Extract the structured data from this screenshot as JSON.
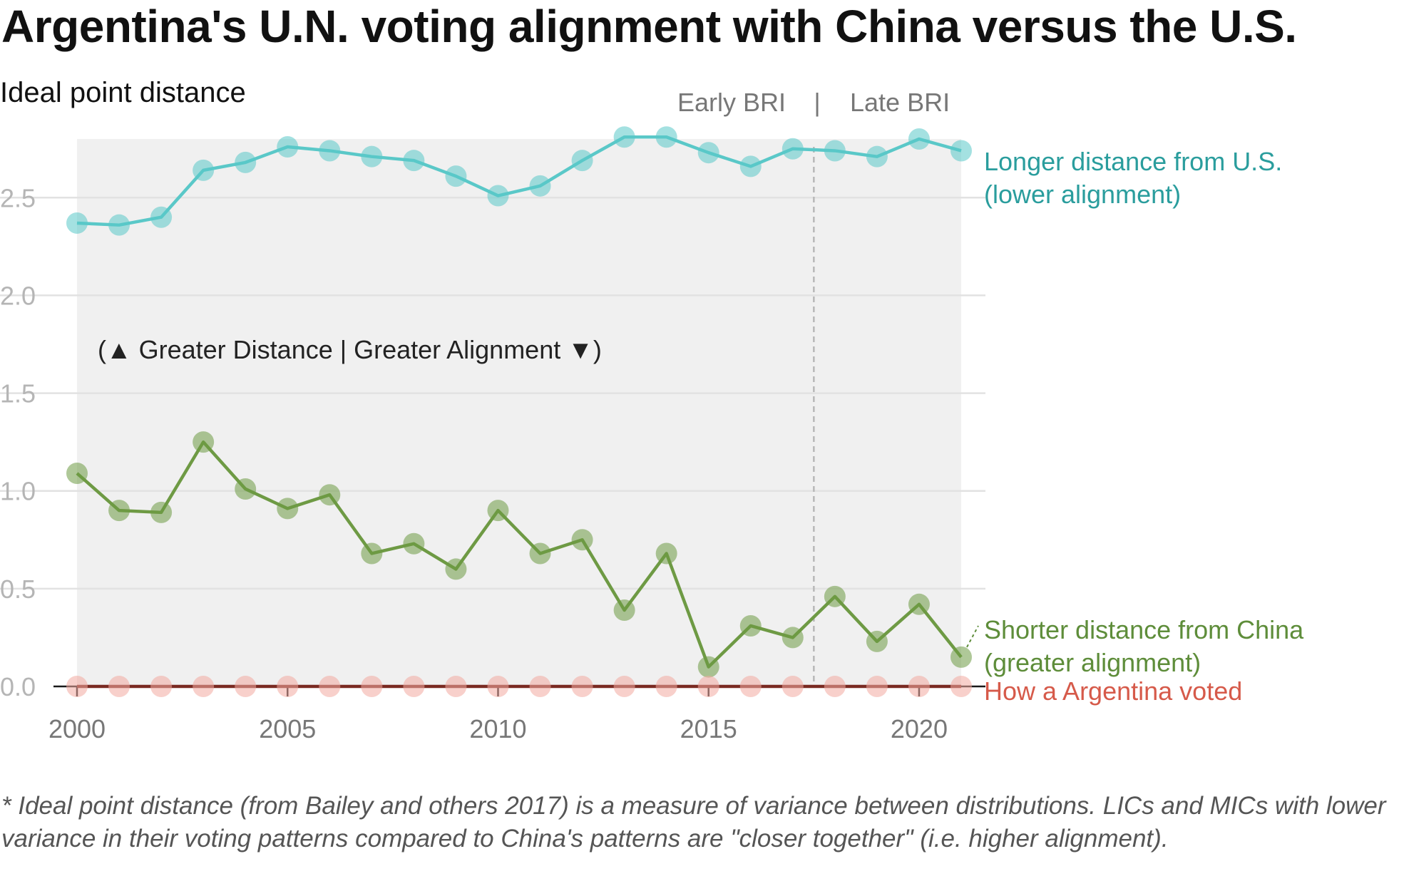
{
  "title": "Argentina's U.N. voting alignment with China versus the U.S.",
  "footnote": "* Ideal point distance (from Bailey and others 2017) is a measure of variance between distributions. LICs and MICs with lower variance in their voting patterns compared to China's patterns are \"closer together\" (i.e. higher alignment).",
  "chart_data": {
    "type": "line",
    "ylabel": "Ideal point distance",
    "xlim": [
      2000,
      2021
    ],
    "ylim": [
      0,
      2.8
    ],
    "x_ticks": [
      2000,
      2005,
      2010,
      2015,
      2020
    ],
    "y_ticks": [
      0.0,
      0.5,
      1.0,
      1.5,
      2.0,
      2.5
    ],
    "y_tick_labels": [
      "0.0",
      "0.5",
      "1.0",
      "1.5",
      "2.0",
      "2.5"
    ],
    "grid": true,
    "x": [
      2000,
      2001,
      2002,
      2003,
      2004,
      2005,
      2006,
      2007,
      2008,
      2009,
      2010,
      2011,
      2012,
      2013,
      2014,
      2015,
      2016,
      2017,
      2018,
      2019,
      2020,
      2021
    ],
    "series": [
      {
        "key": "us",
        "name": "Longer distance from U.S. (lower alignment)",
        "label_lines": [
          "Longer distance from U.S.",
          "(lower alignment)"
        ],
        "color": "#5ac8c8",
        "label_color": "#2a9d9d",
        "values": [
          2.37,
          2.36,
          2.4,
          2.64,
          2.68,
          2.76,
          2.74,
          2.71,
          2.69,
          2.61,
          2.51,
          2.56,
          2.69,
          2.81,
          2.81,
          2.73,
          2.66,
          2.75,
          2.74,
          2.71,
          2.8,
          2.74
        ]
      },
      {
        "key": "china",
        "name": "Shorter distance from China (greater alignment)",
        "label_lines": [
          "Shorter distance from China",
          "(greater alignment)"
        ],
        "color": "#6e9a44",
        "label_color": "#5e8d3a",
        "values": [
          1.09,
          0.9,
          0.89,
          1.25,
          1.01,
          0.91,
          0.98,
          0.68,
          0.73,
          0.6,
          0.9,
          0.68,
          0.75,
          0.39,
          0.68,
          0.1,
          0.31,
          0.25,
          0.46,
          0.23,
          0.42,
          0.15
        ]
      },
      {
        "key": "self",
        "name": "How a Argentina voted",
        "label_lines": [
          "How a Argentina voted"
        ],
        "color": "#f2a9a0",
        "label_color": "#d65a4a",
        "line_color": "#7a2a22",
        "values": [
          0,
          0,
          0,
          0,
          0,
          0,
          0,
          0,
          0,
          0,
          0,
          0,
          0,
          0,
          0,
          0,
          0,
          0,
          0,
          0,
          0,
          0
        ]
      }
    ],
    "period_divider_x": 2017.5,
    "period_labels": {
      "early": "Early BRI",
      "separator": "|",
      "late": "Late BRI"
    },
    "annotation": "(▲ Greater Distance  |  Greater Alignment ▼)"
  }
}
